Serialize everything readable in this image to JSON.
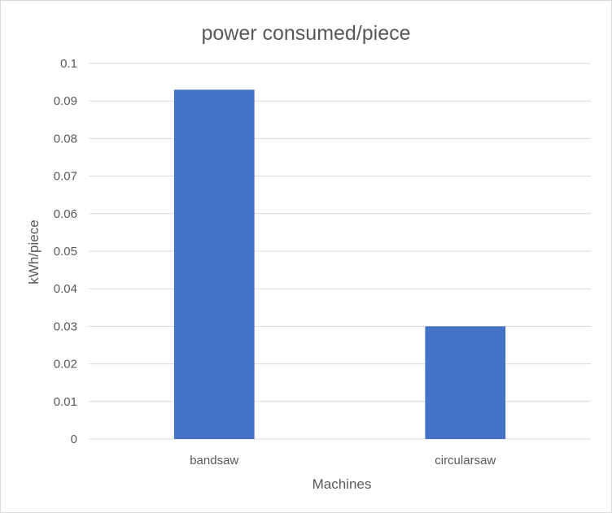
{
  "chart_data": {
    "type": "bar",
    "title": "power consumed/piece",
    "xlabel": "Machines",
    "ylabel": "kWh/piece",
    "categories": [
      "bandsaw",
      "circularsaw"
    ],
    "values": [
      0.093,
      0.03
    ],
    "ylim": [
      0,
      0.1
    ],
    "yticks": [
      "0",
      "0.01",
      "0.02",
      "0.03",
      "0.04",
      "0.05",
      "0.06",
      "0.07",
      "0.08",
      "0.09",
      "0.1"
    ],
    "grid": true,
    "legend": "none",
    "bar_color": "#4472C4",
    "grid_color": "#d9d9d9",
    "text_color": "#595959"
  }
}
